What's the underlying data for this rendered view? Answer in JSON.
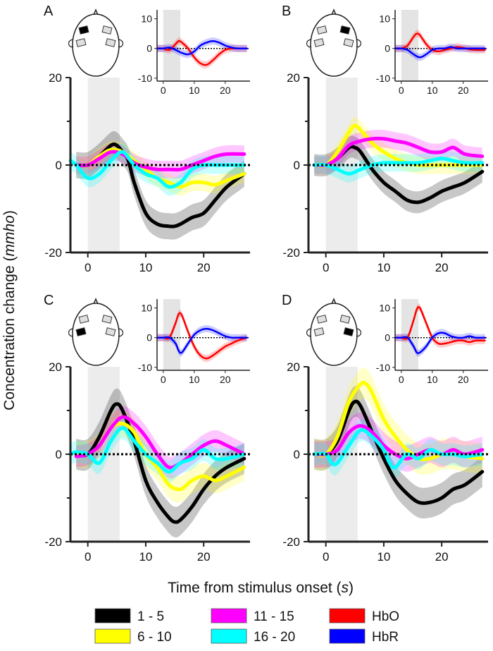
{
  "figure": {
    "y_label": "Concentration change",
    "y_label_unit": "mmho",
    "x_label": "Time from stimulus onset",
    "x_label_unit": "s",
    "legend": [
      {
        "label": "1 - 5",
        "color": "#000000"
      },
      {
        "label": "6 - 10",
        "color": "#ffff00"
      },
      {
        "label": "11 - 15",
        "color": "#ff00ff"
      },
      {
        "label": "16 - 20",
        "color": "#00ffff"
      },
      {
        "label": "HbO",
        "color": "#ff0000"
      },
      {
        "label": "HbR",
        "color": "#0000ff"
      }
    ]
  },
  "chart_data": [
    {
      "panel": "A",
      "type": "line",
      "xlim": [
        -3,
        28
      ],
      "ylim": [
        -20,
        20
      ],
      "xticks": [
        "0",
        "10",
        "20"
      ],
      "yticks": [
        "20",
        "0",
        "-20"
      ],
      "stimulus_window": [
        0,
        5.5
      ],
      "active_channel": 0,
      "series": [
        {
          "name": "1 - 5",
          "color": "#000000",
          "band": 3,
          "x": [
            -2,
            0,
            2,
            4,
            5,
            6,
            7,
            8,
            10,
            12,
            14,
            15,
            16,
            18,
            20,
            22,
            24,
            27
          ],
          "y": [
            0,
            0,
            2,
            4.5,
            4.5,
            3,
            1,
            -4,
            -11,
            -13.5,
            -14,
            -14,
            -13.5,
            -12,
            -11,
            -8,
            -5,
            -2
          ]
        },
        {
          "name": "6 - 10",
          "color": "#ffff00",
          "band": 2,
          "x": [
            -2,
            0,
            2,
            4,
            6,
            8,
            10,
            12,
            14,
            16,
            18,
            20,
            22,
            24,
            27
          ],
          "y": [
            0,
            0,
            2,
            3.5,
            3,
            1,
            -1,
            -3,
            -4,
            -5,
            -4,
            -4,
            -4.5,
            -3.5,
            -2
          ]
        },
        {
          "name": "11 - 15",
          "color": "#ff00ff",
          "band": 2,
          "x": [
            -2,
            0,
            2,
            4,
            6,
            8,
            10,
            12,
            14,
            16,
            18,
            20,
            22,
            24,
            27
          ],
          "y": [
            0,
            0,
            1.5,
            3,
            2.5,
            0.5,
            -0.5,
            -1,
            -1,
            -1,
            0,
            1,
            2,
            2.5,
            2.5
          ]
        },
        {
          "name": "16 - 20",
          "color": "#00ffff",
          "band": 2,
          "x": [
            -3,
            -2,
            0,
            2,
            4,
            6,
            8,
            10,
            12,
            14,
            16,
            18,
            20,
            22,
            24,
            27
          ],
          "y": [
            1,
            0,
            -3,
            -2,
            1,
            3,
            0,
            -2,
            -3,
            -5,
            -4,
            -1,
            0,
            0,
            0,
            0
          ]
        }
      ],
      "inset": {
        "xlim": [
          -2,
          28
        ],
        "ylim": [
          -11,
          13
        ],
        "xticks": [
          "0",
          "10",
          "20"
        ],
        "yticks": [
          "10",
          "0",
          "-10"
        ],
        "stimulus_window": [
          0,
          5.5
        ],
        "series": [
          {
            "name": "HbO",
            "color": "#ff0000",
            "x": [
              -2,
              0,
              2,
              4,
              5,
              6,
              8,
              10,
              12,
              14,
              16,
              18,
              20,
              22,
              24,
              27
            ],
            "y": [
              0,
              0,
              -0.5,
              1.5,
              2.5,
              2,
              0,
              -3,
              -5,
              -5.5,
              -4,
              -2,
              -0.5,
              0,
              0,
              0
            ]
          },
          {
            "name": "HbR",
            "color": "#0000ff",
            "x": [
              -2,
              0,
              2,
              4,
              6,
              8,
              10,
              12,
              14,
              16,
              18,
              20,
              22,
              24,
              27
            ],
            "y": [
              0,
              0,
              0.3,
              -0.5,
              -1.5,
              -2,
              -1,
              1,
              2,
              2.5,
              2,
              1,
              0.3,
              0,
              0
            ]
          }
        ]
      }
    },
    {
      "panel": "B",
      "type": "line",
      "xlim": [
        -3,
        28
      ],
      "ylim": [
        -20,
        20
      ],
      "xticks": [
        "0",
        "10",
        "20"
      ],
      "yticks": [
        "20",
        "0",
        "-20"
      ],
      "stimulus_window": [
        0,
        5.5
      ],
      "active_channel": 1,
      "series": [
        {
          "name": "1 - 5",
          "color": "#000000",
          "band": 2.5,
          "x": [
            -2,
            0,
            2,
            4,
            5,
            6,
            8,
            10,
            12,
            14,
            16,
            18,
            20,
            22,
            24,
            27
          ],
          "y": [
            0,
            0,
            1.5,
            4,
            4,
            3,
            -1,
            -4,
            -6,
            -8,
            -8.5,
            -7.5,
            -6,
            -5,
            -4,
            -1.5
          ]
        },
        {
          "name": "6 - 10",
          "color": "#ffff00",
          "band": 2,
          "x": [
            -2,
            0,
            2,
            4,
            5,
            6,
            8,
            10,
            12,
            14,
            16,
            18,
            20,
            22,
            24,
            27
          ],
          "y": [
            0,
            0,
            3,
            7.5,
            9,
            8,
            5,
            3,
            1.5,
            0.5,
            0,
            0,
            0,
            0,
            0,
            0
          ]
        },
        {
          "name": "11 - 15",
          "color": "#ff00ff",
          "band": 2,
          "x": [
            -2,
            0,
            2,
            4,
            6,
            8,
            10,
            12,
            14,
            16,
            18,
            20,
            22,
            24,
            27
          ],
          "y": [
            0,
            0,
            1.5,
            4.5,
            5.5,
            6,
            6,
            5.5,
            5,
            4,
            3,
            3,
            4,
            2.5,
            2
          ]
        },
        {
          "name": "16 - 20",
          "color": "#00ffff",
          "band": 2,
          "x": [
            -2,
            0,
            2,
            4,
            6,
            8,
            10,
            12,
            14,
            16,
            18,
            20,
            22,
            24,
            27
          ],
          "y": [
            0,
            0,
            -1,
            -2,
            -1,
            0,
            0.5,
            0.5,
            0.5,
            0.5,
            1,
            1.5,
            1,
            0.5,
            0.5
          ]
        }
      ],
      "inset": {
        "xlim": [
          -2,
          28
        ],
        "ylim": [
          -11,
          13
        ],
        "xticks": [
          "0",
          "10",
          "20"
        ],
        "yticks": [
          "10",
          "0",
          "-10"
        ],
        "stimulus_window": [
          0,
          5.5
        ],
        "series": [
          {
            "name": "HbO",
            "color": "#ff0000",
            "x": [
              -2,
              0,
              2,
              4,
              5,
              6,
              8,
              10,
              12,
              14,
              16,
              18,
              20,
              22,
              24,
              27
            ],
            "y": [
              0,
              0,
              1,
              4,
              5,
              4.5,
              1.5,
              -0.5,
              -1,
              -0.5,
              0,
              0.5,
              0.2,
              -0.3,
              -0.5,
              -0.5
            ]
          },
          {
            "name": "HbR",
            "color": "#0000ff",
            "x": [
              -2,
              0,
              2,
              4,
              6,
              8,
              10,
              12,
              14,
              16,
              18,
              20,
              22,
              24,
              27
            ],
            "y": [
              0,
              0,
              -0.5,
              -2,
              -3,
              -2,
              -0.5,
              0,
              0,
              0.5,
              0,
              0,
              0,
              0,
              0
            ]
          }
        ]
      }
    },
    {
      "panel": "C",
      "type": "line",
      "xlim": [
        -3,
        28
      ],
      "ylim": [
        -20,
        20
      ],
      "xticks": [
        "0",
        "10",
        "20"
      ],
      "yticks": [
        "20",
        "0",
        "-20"
      ],
      "stimulus_window": [
        0,
        5.5
      ],
      "active_channel": 2,
      "series": [
        {
          "name": "1 - 5",
          "color": "#000000",
          "band": 3.5,
          "x": [
            -2,
            0,
            2,
            4,
            5,
            6,
            8,
            10,
            12,
            14,
            15,
            16,
            18,
            20,
            22,
            24,
            27
          ],
          "y": [
            0,
            0,
            4,
            10,
            11.5,
            10,
            3,
            -6,
            -11,
            -14.5,
            -15.5,
            -15,
            -12,
            -8,
            -5,
            -3,
            -1
          ]
        },
        {
          "name": "6 - 10",
          "color": "#ffff00",
          "band": 3,
          "x": [
            -2,
            0,
            2,
            4,
            6,
            8,
            10,
            12,
            14,
            16,
            18,
            20,
            22,
            24,
            27
          ],
          "y": [
            0,
            0,
            2,
            6,
            7,
            5,
            0,
            -3,
            -7,
            -8,
            -6,
            -5,
            -6,
            -5,
            -3
          ]
        },
        {
          "name": "11 - 15",
          "color": "#ff00ff",
          "band": 2.5,
          "x": [
            -2,
            0,
            2,
            4,
            6,
            8,
            10,
            12,
            14,
            16,
            18,
            20,
            22,
            24,
            27
          ],
          "y": [
            -0.5,
            0,
            2,
            6,
            8.5,
            7,
            4,
            0,
            -3,
            -2,
            0,
            2,
            3,
            2,
            0
          ]
        },
        {
          "name": "16 - 20",
          "color": "#00ffff",
          "band": 2.5,
          "x": [
            -3,
            -2,
            0,
            2,
            4,
            6,
            8,
            10,
            12,
            14,
            16,
            18,
            20,
            22,
            24,
            27
          ],
          "y": [
            0,
            0.5,
            0,
            -2,
            3,
            6,
            3,
            0,
            -2,
            -4,
            -2,
            -1,
            1,
            -1,
            -1,
            0
          ]
        }
      ],
      "inset": {
        "xlim": [
          -2,
          28
        ],
        "ylim": [
          -11,
          13
        ],
        "xticks": [
          "0",
          "10",
          "20"
        ],
        "yticks": [
          "10",
          "0",
          "-10"
        ],
        "stimulus_window": [
          0,
          5.5
        ],
        "series": [
          {
            "name": "HbO",
            "color": "#ff0000",
            "x": [
              -2,
              0,
              2,
              4,
              5,
              6,
              8,
              10,
              12,
              14,
              16,
              18,
              20,
              22,
              24,
              27
            ],
            "y": [
              0,
              0,
              0,
              5,
              8,
              7.5,
              2,
              -3,
              -6,
              -7,
              -6,
              -4.5,
              -3,
              -2,
              -1,
              0
            ]
          },
          {
            "name": "HbR",
            "color": "#0000ff",
            "x": [
              -2,
              0,
              2,
              4,
              5,
              6,
              8,
              10,
              12,
              14,
              16,
              18,
              20,
              22,
              24,
              27
            ],
            "y": [
              0,
              0,
              0,
              -2,
              -4.5,
              -5,
              -2,
              1,
              2.5,
              3,
              2.5,
              1.5,
              0.5,
              0,
              0,
              0
            ]
          }
        ]
      }
    },
    {
      "panel": "D",
      "type": "line",
      "xlim": [
        -3,
        28
      ],
      "ylim": [
        -20,
        20
      ],
      "xticks": [
        "0",
        "10",
        "20"
      ],
      "yticks": [
        "20",
        "0",
        "-20"
      ],
      "stimulus_window": [
        0,
        5.5
      ],
      "active_channel": 3,
      "series": [
        {
          "name": "1 - 5",
          "color": "#000000",
          "band": 3.5,
          "x": [
            -2,
            0,
            2,
            4,
            5,
            6,
            8,
            10,
            12,
            14,
            16,
            18,
            20,
            22,
            24,
            27
          ],
          "y": [
            0,
            0,
            3,
            10,
            12,
            11,
            5,
            -1,
            -6,
            -9,
            -11,
            -11,
            -10,
            -8,
            -7,
            -4
          ]
        },
        {
          "name": "6 - 10",
          "color": "#ffff00",
          "band": 3.5,
          "x": [
            -2,
            0,
            2,
            4,
            6,
            7,
            8,
            10,
            12,
            14,
            16,
            18,
            20,
            22,
            24,
            27
          ],
          "y": [
            0,
            0,
            4,
            12,
            16,
            16,
            14,
            8,
            4,
            1,
            -1,
            -1,
            0,
            0,
            -0.5,
            -1
          ]
        },
        {
          "name": "11 - 15",
          "color": "#ff00ff",
          "band": 3,
          "x": [
            -2,
            0,
            2,
            4,
            6,
            8,
            10,
            12,
            14,
            16,
            18,
            20,
            22,
            24,
            27
          ],
          "y": [
            0,
            0,
            1,
            5,
            6.5,
            5,
            2,
            0,
            -1,
            0,
            1,
            0,
            1,
            0,
            1
          ]
        },
        {
          "name": "16 - 20",
          "color": "#00ffff",
          "band": 2.5,
          "x": [
            -2,
            0,
            1,
            2,
            4,
            6,
            8,
            10,
            11,
            12,
            14,
            16,
            18,
            20,
            22,
            24,
            27
          ],
          "y": [
            0,
            0,
            -2,
            -2,
            2,
            5.5,
            4,
            1,
            -2,
            -3,
            0,
            -1,
            1,
            0,
            0,
            -0.5,
            0
          ]
        }
      ],
      "inset": {
        "xlim": [
          -2,
          28
        ],
        "ylim": [
          -11,
          13
        ],
        "xticks": [
          "0",
          "10",
          "20"
        ],
        "yticks": [
          "10",
          "0",
          "-10"
        ],
        "stimulus_window": [
          0,
          5.5
        ],
        "series": [
          {
            "name": "HbO",
            "color": "#ff0000",
            "x": [
              -2,
              0,
              2,
              4,
              5,
              6,
              8,
              10,
              12,
              14,
              16,
              18,
              20,
              22,
              24,
              27
            ],
            "y": [
              0,
              0,
              0,
              6,
              9.5,
              10,
              5,
              0,
              -2,
              -2,
              -1.5,
              -1,
              -1,
              -1.5,
              -1,
              -1
            ]
          },
          {
            "name": "HbR",
            "color": "#0000ff",
            "x": [
              -2,
              0,
              2,
              4,
              5,
              6,
              8,
              10,
              12,
              14,
              16,
              18,
              20,
              22,
              24,
              27
            ],
            "y": [
              0,
              0,
              0,
              -3,
              -5,
              -5,
              -3,
              0,
              1.5,
              1.5,
              0.5,
              0,
              0,
              0.5,
              0,
              0
            ]
          }
        ]
      }
    }
  ]
}
